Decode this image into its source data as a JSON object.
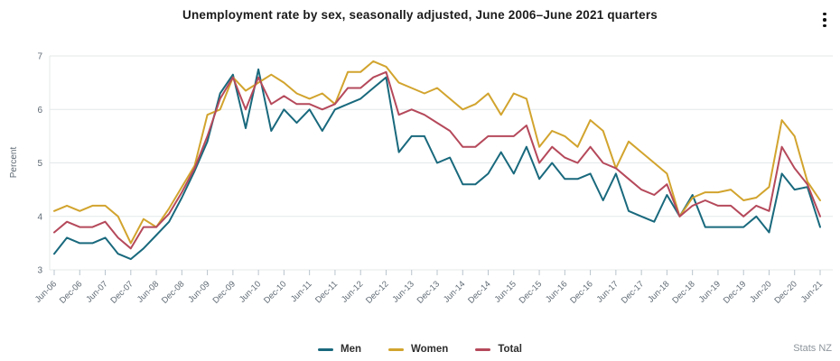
{
  "header": {
    "title": "Unemployment rate by sex, seasonally adjusted, June 2006–June 2021 quarters",
    "menu_icon": "kebab-menu-icon"
  },
  "footer": {
    "attribution": "Stats NZ"
  },
  "colors": {
    "men": "#19697d",
    "women": "#d2a42e",
    "total": "#b5495b",
    "gridline": "#e4e8ea",
    "axis_text": "#5f6a74",
    "tick": "#b9c4cc"
  },
  "chart_data": {
    "type": "line",
    "title": "Unemployment rate by sex, seasonally adjusted, June 2006–June 2021 quarters",
    "xlabel": "",
    "ylabel": "Percent",
    "ylim": [
      3,
      7
    ],
    "yticks": [
      3,
      4,
      5,
      6,
      7
    ],
    "grid": "horizontal",
    "legend_position": "bottom",
    "x_tick_every": 2,
    "x": [
      "Jun-06",
      "Sep-06",
      "Dec-06",
      "Mar-07",
      "Jun-07",
      "Sep-07",
      "Dec-07",
      "Mar-08",
      "Jun-08",
      "Sep-08",
      "Dec-08",
      "Mar-09",
      "Jun-09",
      "Sep-09",
      "Dec-09",
      "Mar-10",
      "Jun-10",
      "Sep-10",
      "Dec-10",
      "Mar-11",
      "Jun-11",
      "Sep-11",
      "Dec-11",
      "Mar-12",
      "Jun-12",
      "Sep-12",
      "Dec-12",
      "Mar-13",
      "Jun-13",
      "Sep-13",
      "Dec-13",
      "Mar-14",
      "Jun-14",
      "Sep-14",
      "Dec-14",
      "Mar-15",
      "Jun-15",
      "Sep-15",
      "Dec-15",
      "Mar-16",
      "Jun-16",
      "Sep-16",
      "Dec-16",
      "Mar-17",
      "Jun-17",
      "Sep-17",
      "Dec-17",
      "Mar-18",
      "Jun-18",
      "Sep-18",
      "Dec-18",
      "Mar-19",
      "Jun-19",
      "Sep-19",
      "Dec-19",
      "Mar-20",
      "Jun-20",
      "Sep-20",
      "Dec-20",
      "Mar-21",
      "Jun-21"
    ],
    "series": [
      {
        "name": "Men",
        "color": "#19697d",
        "values": [
          3.3,
          3.6,
          3.5,
          3.5,
          3.6,
          3.3,
          3.2,
          3.4,
          3.65,
          3.9,
          4.35,
          4.85,
          5.4,
          6.3,
          6.65,
          5.65,
          6.75,
          5.6,
          6.0,
          5.75,
          6.0,
          5.6,
          6.0,
          6.1,
          6.2,
          6.4,
          6.6,
          5.2,
          5.5,
          5.5,
          5.0,
          5.1,
          4.6,
          4.6,
          4.8,
          5.2,
          4.8,
          5.3,
          4.7,
          5.0,
          4.7,
          4.7,
          4.8,
          4.3,
          4.8,
          4.1,
          4.0,
          3.9,
          4.4,
          4.0,
          4.4,
          3.8,
          3.8,
          3.8,
          3.8,
          4.0,
          3.7,
          4.8,
          4.5,
          4.55,
          3.8
        ]
      },
      {
        "name": "Women",
        "color": "#d2a42e",
        "values": [
          4.1,
          4.2,
          4.1,
          4.2,
          4.2,
          4.0,
          3.5,
          3.95,
          3.8,
          4.15,
          4.55,
          4.95,
          5.9,
          6.0,
          6.6,
          6.35,
          6.5,
          6.65,
          6.5,
          6.3,
          6.2,
          6.3,
          6.1,
          6.7,
          6.7,
          6.9,
          6.8,
          6.5,
          6.4,
          6.3,
          6.4,
          6.2,
          6.0,
          6.1,
          6.3,
          5.9,
          6.3,
          6.2,
          5.3,
          5.6,
          5.5,
          5.3,
          5.8,
          5.6,
          4.9,
          5.4,
          5.2,
          5.0,
          4.8,
          4.0,
          4.35,
          4.45,
          4.45,
          4.5,
          4.3,
          4.35,
          4.55,
          5.8,
          5.5,
          4.65,
          4.3
        ]
      },
      {
        "name": "Total",
        "color": "#b5495b",
        "values": [
          3.7,
          3.9,
          3.8,
          3.8,
          3.9,
          3.6,
          3.4,
          3.8,
          3.8,
          4.05,
          4.45,
          4.9,
          5.5,
          6.2,
          6.6,
          6.0,
          6.6,
          6.1,
          6.25,
          6.1,
          6.1,
          6.0,
          6.1,
          6.4,
          6.4,
          6.6,
          6.7,
          5.9,
          6.0,
          5.9,
          5.75,
          5.6,
          5.3,
          5.3,
          5.5,
          5.5,
          5.5,
          5.7,
          5.0,
          5.3,
          5.1,
          5.0,
          5.3,
          5.0,
          4.9,
          4.7,
          4.5,
          4.4,
          4.6,
          4.0,
          4.2,
          4.3,
          4.2,
          4.2,
          4.0,
          4.2,
          4.1,
          5.3,
          4.9,
          4.6,
          4.0
        ]
      }
    ]
  }
}
